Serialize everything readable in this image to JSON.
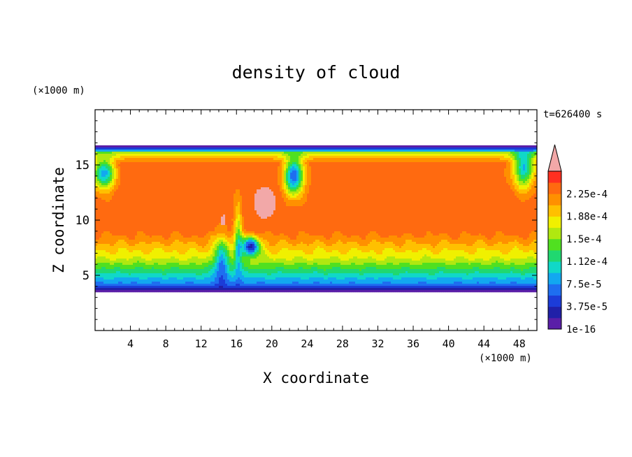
{
  "chart_data": {
    "type": "heatmap",
    "title": "density of cloud",
    "xlabel": "X coordinate",
    "ylabel": "Z coordinate",
    "x_unit": "(×1000 m)",
    "y_unit": "(×1000 m)",
    "time_label": "t=626400 s",
    "xlim": [
      0,
      50
    ],
    "ylim": [
      0,
      20
    ],
    "x_ticks": [
      4,
      8,
      12,
      16,
      20,
      24,
      28,
      32,
      36,
      40,
      44,
      48
    ],
    "y_ticks": [
      5,
      10,
      15
    ],
    "colorbar": {
      "levels": [
        1e-16,
        1.875e-05,
        3.75e-05,
        5.625e-05,
        7.5e-05,
        9.375e-05,
        0.0001125,
        0.00013125,
        0.00015,
        0.00016875,
        0.0001875,
        0.00020625,
        0.000225,
        0.00024375
      ],
      "tick_labels": [
        "1e-16",
        "3.75e-5",
        "7.5e-5",
        "1.12e-4",
        "1.5e-4",
        "1.88e-4",
        "2.25e-4"
      ],
      "colors": [
        "#5a1ea8",
        "#2020a8",
        "#1c3cd8",
        "#1e6ef0",
        "#12a8f0",
        "#10d8c8",
        "#20d870",
        "#50e020",
        "#b0e810",
        "#f0f000",
        "#ffc000",
        "#ff9000",
        "#ff6a10",
        "#ff3020"
      ],
      "over_color": "#f2a8a8"
    },
    "cloud_layer": {
      "base_km": 3.5,
      "top_km": 16.7,
      "core_value": 0.000235,
      "overshoot_value": 0.00025
    }
  }
}
